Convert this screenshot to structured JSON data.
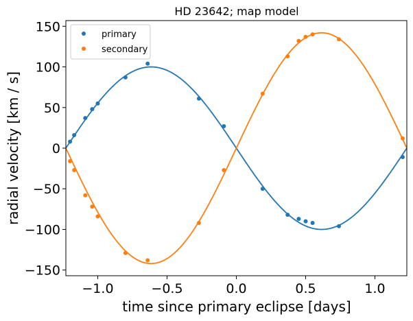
{
  "chart_data": {
    "type": "scatter",
    "title": "HD 23642; map model",
    "xlabel": "time since primary eclipse [days]",
    "ylabel": "radial velocity [km / s]",
    "xlim": [
      -1.23,
      1.23
    ],
    "ylim": [
      -157,
      157
    ],
    "xticks": [
      -1.0,
      -0.5,
      0.0,
      0.5,
      1.0
    ],
    "xtick_labels": [
      "−1.0",
      "−0.5",
      "0.0",
      "0.5",
      "1.0"
    ],
    "yticks": [
      -150,
      -100,
      -50,
      0,
      50,
      100,
      150
    ],
    "ytick_labels": [
      "−150",
      "−100",
      "−50",
      "0",
      "50",
      "100",
      "150"
    ],
    "legend_position": "top-left",
    "grid": false,
    "model": {
      "period": 2.46,
      "amplitude_primary": 100,
      "amplitude_secondary": 142,
      "peak_time_primary": -0.615,
      "peak_time_secondary": 0.615
    },
    "series": [
      {
        "name": "primary",
        "color": "#1f77b4",
        "points": [
          {
            "x": -1.2,
            "y": 8
          },
          {
            "x": -1.17,
            "y": 16
          },
          {
            "x": -1.09,
            "y": 37
          },
          {
            "x": -1.04,
            "y": 48
          },
          {
            "x": -1.0,
            "y": 55
          },
          {
            "x": -0.8,
            "y": 87
          },
          {
            "x": -0.64,
            "y": 104
          },
          {
            "x": -0.27,
            "y": 61
          },
          {
            "x": -0.09,
            "y": 27
          },
          {
            "x": 0.19,
            "y": -50
          },
          {
            "x": 0.37,
            "y": -82
          },
          {
            "x": 0.45,
            "y": -87
          },
          {
            "x": 0.5,
            "y": -90
          },
          {
            "x": 0.55,
            "y": -92
          },
          {
            "x": 0.74,
            "y": -96
          },
          {
            "x": 1.2,
            "y": -11
          }
        ]
      },
      {
        "name": "secondary",
        "color": "#ff7f0e",
        "points": [
          {
            "x": -1.2,
            "y": -16
          },
          {
            "x": -1.17,
            "y": -27
          },
          {
            "x": -1.09,
            "y": -58
          },
          {
            "x": -1.04,
            "y": -72
          },
          {
            "x": -1.0,
            "y": -84
          },
          {
            "x": -0.8,
            "y": -129
          },
          {
            "x": -0.64,
            "y": -138
          },
          {
            "x": -0.27,
            "y": -92
          },
          {
            "x": -0.09,
            "y": -27
          },
          {
            "x": 0.19,
            "y": 67
          },
          {
            "x": 0.37,
            "y": 113
          },
          {
            "x": 0.45,
            "y": 132
          },
          {
            "x": 0.5,
            "y": 137
          },
          {
            "x": 0.55,
            "y": 140
          },
          {
            "x": 0.74,
            "y": 134
          },
          {
            "x": 1.2,
            "y": 12
          }
        ]
      }
    ]
  }
}
